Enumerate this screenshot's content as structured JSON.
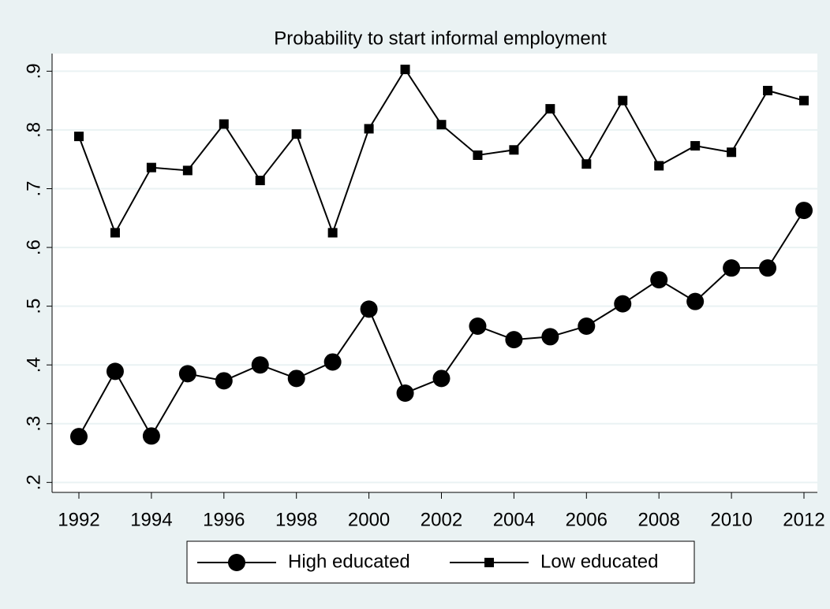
{
  "chart_data": {
    "type": "line",
    "title": "Probability to start informal employment",
    "x": [
      1992,
      1993,
      1994,
      1995,
      1996,
      1997,
      1998,
      1999,
      2000,
      2001,
      2002,
      2003,
      2004,
      2005,
      2006,
      2007,
      2008,
      2009,
      2010,
      2011,
      2012
    ],
    "series": [
      {
        "name": "High educated",
        "color": "#000000",
        "marker": "circle",
        "values": [
          0.278,
          0.389,
          0.279,
          0.385,
          0.373,
          0.4,
          0.377,
          0.405,
          0.495,
          0.352,
          0.377,
          0.466,
          0.443,
          0.448,
          0.466,
          0.504,
          0.545,
          0.508,
          0.565,
          0.565,
          0.663
        ]
      },
      {
        "name": "Low educated",
        "color": "#000000",
        "marker": "square",
        "values": [
          0.789,
          0.625,
          0.736,
          0.731,
          0.81,
          0.714,
          0.793,
          0.625,
          0.802,
          0.903,
          0.809,
          0.757,
          0.766,
          0.836,
          0.742,
          0.85,
          0.739,
          0.773,
          0.762,
          0.867,
          0.85
        ]
      }
    ],
    "xlim": [
      1991.26,
      2012.37
    ],
    "xticks": [
      1992,
      1994,
      1996,
      1998,
      2000,
      2002,
      2004,
      2006,
      2008,
      2010,
      2012
    ],
    "ylim": [
      0.183,
      0.93
    ],
    "yticks": [
      {
        "value": 0.2,
        "label": ".2"
      },
      {
        "value": 0.3,
        "label": ".3"
      },
      {
        "value": 0.4,
        "label": ".4"
      },
      {
        "value": 0.5,
        "label": ".5"
      },
      {
        "value": 0.6,
        "label": ".6"
      },
      {
        "value": 0.7,
        "label": ".7"
      },
      {
        "value": 0.8,
        "label": ".8"
      },
      {
        "value": 0.9,
        "label": ".9"
      }
    ],
    "grid": true,
    "legend": "bottom"
  }
}
